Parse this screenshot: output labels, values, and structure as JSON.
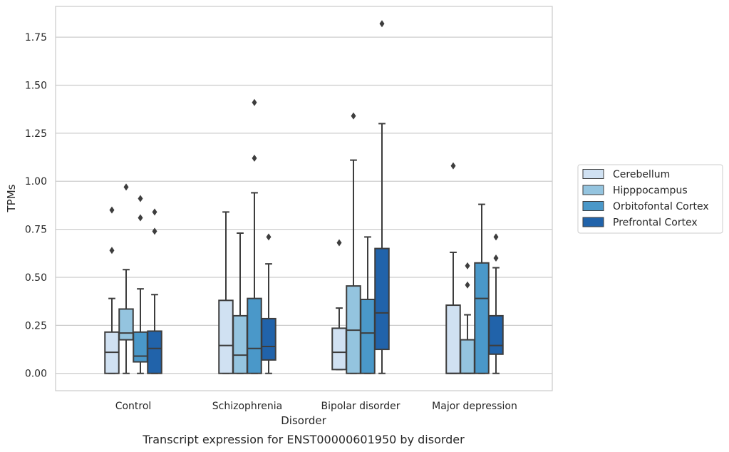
{
  "chart_data": {
    "type": "box",
    "caption": "Transcript expression for ENST00000601950 by disorder",
    "xlabel": "Disorder",
    "ylabel": "TPMs",
    "ylim": [
      -0.09,
      1.91
    ],
    "yticks": [
      "0.00",
      "0.25",
      "0.50",
      "0.75",
      "1.00",
      "1.25",
      "1.50",
      "1.75"
    ],
    "grid": "horizontal",
    "legend_position": "right",
    "categories": [
      "Control",
      "Schizophrenia",
      "Bipolar disorder",
      "Major depression"
    ],
    "series": [
      {
        "name": "Cerebellum",
        "color": "#d0e1f2",
        "boxes": [
          {
            "min": 0.0,
            "q1": 0.0,
            "median": 0.11,
            "q3": 0.215,
            "max": 0.39,
            "outliers": [
              0.64,
              0.85
            ]
          },
          {
            "min": 0.0,
            "q1": 0.0,
            "median": 0.145,
            "q3": 0.38,
            "max": 0.84,
            "outliers": []
          },
          {
            "min": 0.02,
            "q1": 0.02,
            "median": 0.11,
            "q3": 0.235,
            "max": 0.34,
            "outliers": [
              0.68
            ]
          },
          {
            "min": 0.0,
            "q1": 0.0,
            "median": 0.0,
            "q3": 0.355,
            "max": 0.63,
            "outliers": [
              1.08
            ]
          }
        ]
      },
      {
        "name": "Hipppocampus",
        "color": "#94c4df",
        "boxes": [
          {
            "min": 0.0,
            "q1": 0.175,
            "median": 0.21,
            "q3": 0.335,
            "max": 0.54,
            "outliers": [
              0.97
            ]
          },
          {
            "min": 0.0,
            "q1": 0.0,
            "median": 0.095,
            "q3": 0.3,
            "max": 0.73,
            "outliers": []
          },
          {
            "min": 0.0,
            "q1": 0.0,
            "median": 0.225,
            "q3": 0.455,
            "max": 1.11,
            "outliers": [
              1.34
            ]
          },
          {
            "min": 0.0,
            "q1": 0.0,
            "median": 0.0,
            "q3": 0.175,
            "max": 0.305,
            "outliers": [
              0.46,
              0.56
            ]
          }
        ]
      },
      {
        "name": "Orbitofontal Cortex",
        "color": "#4a98c9",
        "boxes": [
          {
            "min": 0.0,
            "q1": 0.06,
            "median": 0.09,
            "q3": 0.215,
            "max": 0.44,
            "outliers": [
              0.81,
              0.91
            ]
          },
          {
            "min": 0.0,
            "q1": 0.0,
            "median": 0.13,
            "q3": 0.39,
            "max": 0.94,
            "outliers": [
              1.12,
              1.41
            ]
          },
          {
            "min": 0.0,
            "q1": 0.0,
            "median": 0.21,
            "q3": 0.385,
            "max": 0.71,
            "outliers": []
          },
          {
            "min": 0.0,
            "q1": 0.0,
            "median": 0.39,
            "q3": 0.575,
            "max": 0.88,
            "outliers": []
          }
        ]
      },
      {
        "name": "Prefrontal Cortex",
        "color": "#2163aa",
        "boxes": [
          {
            "min": 0.0,
            "q1": 0.0,
            "median": 0.13,
            "q3": 0.22,
            "max": 0.41,
            "outliers": [
              0.74,
              0.84
            ]
          },
          {
            "min": 0.0,
            "q1": 0.07,
            "median": 0.14,
            "q3": 0.285,
            "max": 0.57,
            "outliers": [
              0.71
            ]
          },
          {
            "min": 0.0,
            "q1": 0.125,
            "median": 0.315,
            "q3": 0.65,
            "max": 1.3,
            "outliers": [
              1.82
            ]
          },
          {
            "min": 0.0,
            "q1": 0.1,
            "median": 0.145,
            "q3": 0.3,
            "max": 0.55,
            "outliers": [
              0.6,
              0.71
            ]
          }
        ]
      }
    ]
  }
}
